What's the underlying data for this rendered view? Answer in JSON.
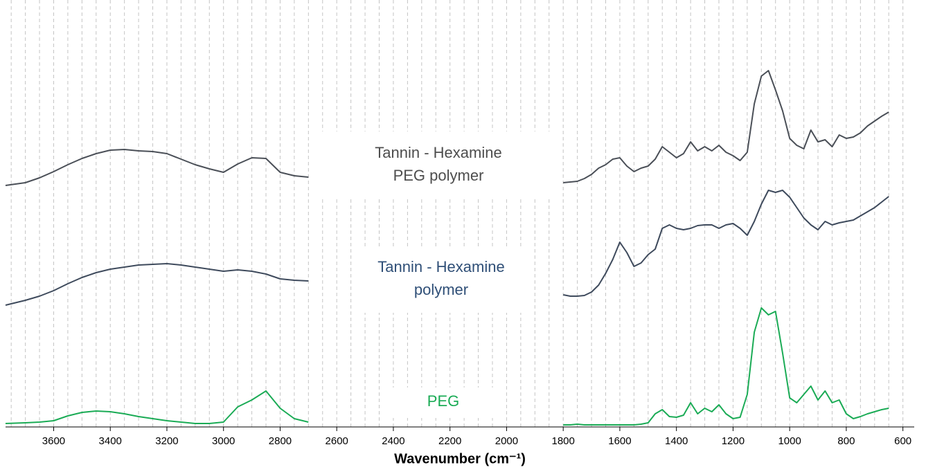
{
  "chart_data": {
    "type": "line",
    "xlabel": "Wavenumber (cm⁻¹)",
    "xlim": [
      3770,
      560
    ],
    "ylim": [
      0,
      617
    ],
    "xticks": [
      3600,
      3400,
      3200,
      3000,
      2800,
      2600,
      2400,
      2200,
      2000,
      1800,
      1600,
      1400,
      1200,
      1000,
      800,
      600
    ],
    "grid": true,
    "grid_xticks": [
      3750,
      3700,
      3650,
      3600,
      3550,
      3500,
      3450,
      3400,
      3350,
      3300,
      3250,
      3200,
      3150,
      3100,
      3050,
      3000,
      2950,
      2900,
      2850,
      2800,
      2750,
      2700,
      2650,
      2600,
      2550,
      2500,
      2450,
      2400,
      2350,
      2300,
      2250,
      2200,
      2150,
      2100,
      2050,
      2000,
      1950,
      1900,
      1850,
      1800,
      1750,
      1700,
      1650,
      1600,
      1550,
      1500,
      1450,
      1400,
      1350,
      1300,
      1250,
      1200,
      1150,
      1100,
      1050,
      1000,
      950,
      900,
      850,
      800,
      750,
      700,
      650,
      600
    ],
    "x": [
      3770,
      3700,
      3650,
      3600,
      3550,
      3500,
      3450,
      3400,
      3350,
      3300,
      3250,
      3200,
      3150,
      3100,
      3050,
      3000,
      2950,
      2900,
      2850,
      2800,
      2750,
      2700,
      2250,
      1800,
      1775,
      1750,
      1725,
      1700,
      1675,
      1650,
      1625,
      1600,
      1575,
      1550,
      1525,
      1500,
      1475,
      1450,
      1425,
      1400,
      1375,
      1350,
      1325,
      1300,
      1275,
      1250,
      1225,
      1200,
      1175,
      1150,
      1125,
      1100,
      1075,
      1050,
      1025,
      1000,
      975,
      950,
      925,
      900,
      875,
      850,
      825,
      800,
      775,
      750,
      725,
      700,
      675,
      650
    ],
    "series": [
      {
        "color": "#4a4f57",
        "values": [
          349,
          353,
          360,
          369,
          379,
          388,
          395,
          400,
          401,
          399,
          398,
          395,
          387,
          379,
          373,
          368,
          380,
          389,
          388,
          368,
          363,
          361,
          null,
          353,
          354,
          355,
          359,
          365,
          374,
          379,
          387,
          389,
          377,
          369,
          374,
          377,
          387,
          405,
          397,
          389,
          395,
          412,
          399,
          405,
          399,
          407,
          397,
          392,
          385,
          397,
          467,
          507,
          515,
          487,
          457,
          417,
          407,
          402,
          429,
          412,
          415,
          405,
          422,
          417,
          419,
          425,
          435,
          442,
          449,
          455
        ]
      },
      {
        "color": "#3e4a5c",
        "values": [
          176,
          183,
          189,
          197,
          207,
          216,
          223,
          228,
          231,
          234,
          235,
          236,
          234,
          231,
          228,
          225,
          227,
          225,
          221,
          214,
          212,
          211,
          null,
          191,
          189,
          189,
          190,
          195,
          205,
          222,
          242,
          267,
          252,
          232,
          237,
          249,
          257,
          287,
          292,
          287,
          285,
          287,
          291,
          292,
          292,
          287,
          292,
          294,
          287,
          277,
          297,
          322,
          342,
          339,
          342,
          332,
          317,
          302,
          292,
          285,
          297,
          292,
          295,
          297,
          299,
          305,
          311,
          317,
          325,
          333
        ]
      },
      {
        "color": "#1aab55",
        "values": [
          5,
          6,
          7,
          9,
          16,
          21,
          23,
          22,
          19,
          15,
          12,
          9,
          7,
          5,
          5,
          7,
          29,
          39,
          52,
          27,
          12,
          7,
          null,
          3,
          3,
          4,
          3,
          3,
          3,
          3,
          3,
          3,
          3,
          3,
          4,
          6,
          19,
          25,
          15,
          14,
          17,
          35,
          19,
          27,
          22,
          32,
          19,
          12,
          14,
          47,
          137,
          172,
          162,
          167,
          107,
          42,
          35,
          47,
          59,
          39,
          52,
          35,
          39,
          19,
          12,
          15,
          19,
          22,
          25,
          27
        ]
      }
    ],
    "annotations": [
      {
        "lines": [
          "Tannin - Hexamine",
          "PEG polymer"
        ],
        "color": "#4d4d4d"
      },
      {
        "lines": [
          "Tannin - Hexamine",
          "polymer"
        ],
        "color": "#2f4f77"
      },
      {
        "lines": [
          "PEG"
        ],
        "color": "#1aab55"
      }
    ]
  }
}
